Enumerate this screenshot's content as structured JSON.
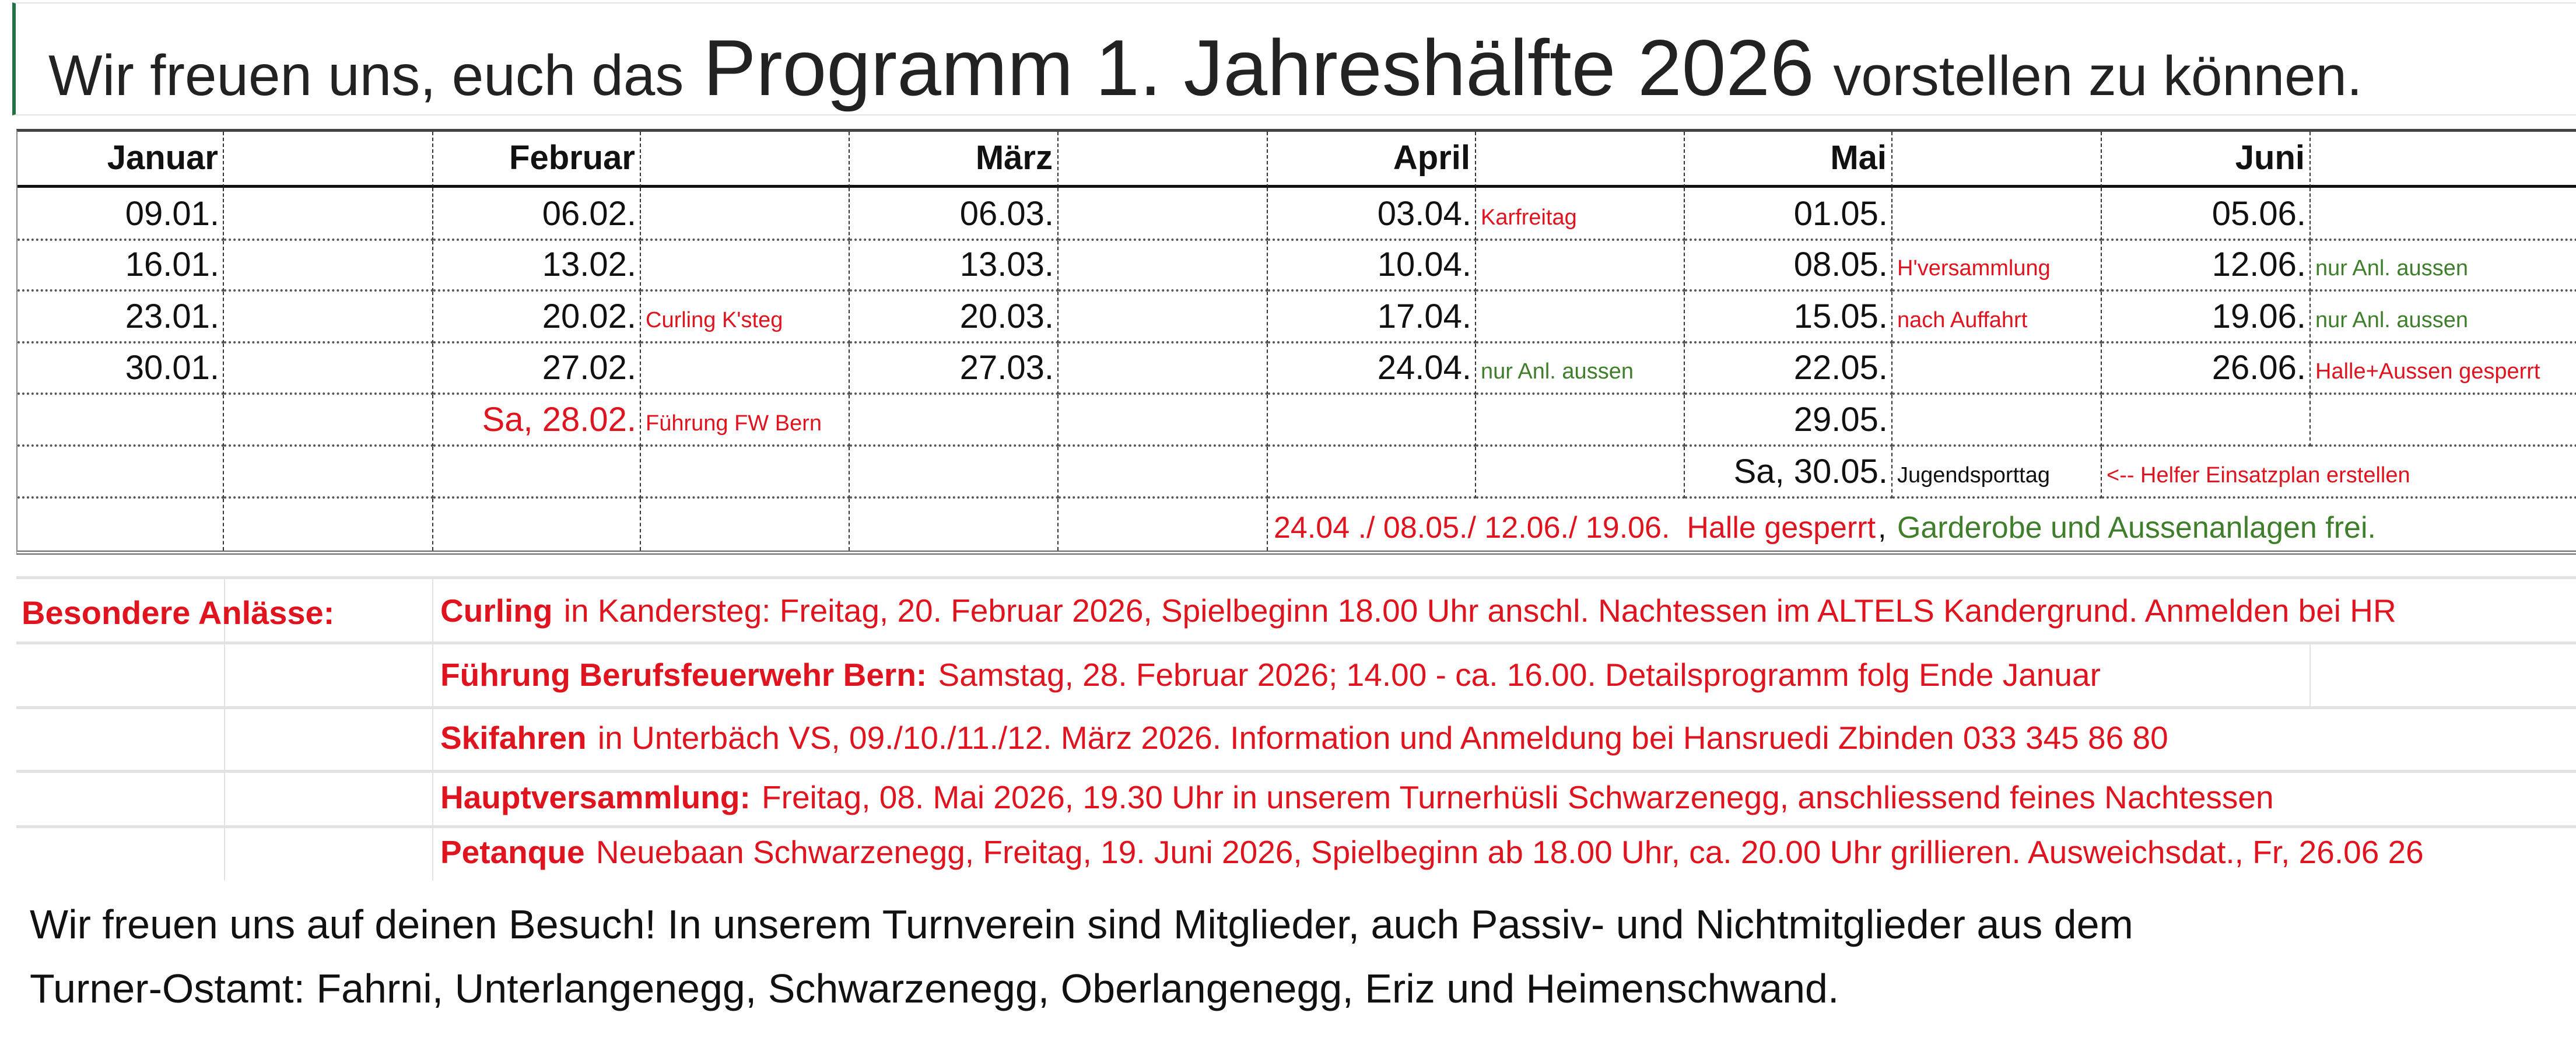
{
  "colors": {
    "red": "#e0141e",
    "green": "#3f7f2c",
    "black": "#111111",
    "accent": "#217346"
  },
  "title": {
    "part1": "Wir freuen uns, euch das ",
    "part2": "Programm 1. Jahreshälfte 2026",
    "part3": " vorstellen zu können."
  },
  "calendar": {
    "months": [
      "Januar",
      "Februar",
      "März",
      "April",
      "Mai",
      "Juni"
    ],
    "rows": [
      [
        {
          "text": "09.01."
        },
        {},
        {
          "text": "06.02."
        },
        {},
        {
          "text": "06.03."
        },
        {},
        {
          "text": "03.04."
        },
        {
          "text": "Karfreitag",
          "color": "red"
        },
        {
          "text": "01.05."
        },
        {},
        {
          "text": "05.06."
        },
        {}
      ],
      [
        {
          "text": "16.01."
        },
        {},
        {
          "text": "13.02."
        },
        {},
        {
          "text": "13.03."
        },
        {},
        {
          "text": "10.04."
        },
        {},
        {
          "text": "08.05."
        },
        {
          "text": "H'versammlung",
          "color": "red"
        },
        {
          "text": "12.06."
        },
        {
          "text": "nur Anl. aussen",
          "color": "green"
        }
      ],
      [
        {
          "text": "23.01."
        },
        {},
        {
          "text": "20.02."
        },
        {
          "text": "Curling K'steg",
          "color": "red"
        },
        {
          "text": "20.03."
        },
        {},
        {
          "text": "17.04."
        },
        {},
        {
          "text": "15.05."
        },
        {
          "text": "nach Auffahrt",
          "color": "red"
        },
        {
          "text": "19.06."
        },
        {
          "text": "nur Anl. aussen",
          "color": "green"
        }
      ],
      [
        {
          "text": "30.01."
        },
        {},
        {
          "text": "27.02."
        },
        {},
        {
          "text": "27.03."
        },
        {},
        {
          "text": "24.04."
        },
        {
          "text": "nur Anl. aussen",
          "color": "green"
        },
        {
          "text": "22.05."
        },
        {},
        {
          "text": "26.06."
        },
        {
          "text": "Halle+Aussen gesperrt",
          "color": "red"
        }
      ],
      [
        {},
        {},
        {
          "text": "Sa, 28.02.",
          "color": "red"
        },
        {
          "text": "Führung FW Bern",
          "color": "red"
        },
        {},
        {},
        {},
        {},
        {
          "text": "29.05."
        },
        {},
        {},
        {}
      ],
      [
        {},
        {},
        {},
        {},
        {},
        {},
        {},
        {},
        {
          "text": "Sa, 30.05."
        },
        {
          "text": "Jugendsporttag"
        },
        {
          "text": "<-- Helfer Einsatzplan erstellen",
          "color": "red"
        },
        {}
      ]
    ],
    "closure_note": {
      "red_part": "24.04 ./ 08.05./ 12.06./ 19.06.  Halle gesperrt",
      "separator": ", ",
      "green_part": "Garderobe und Aussenanlagen frei."
    }
  },
  "special": {
    "label": "Besondere Anlässe:",
    "events": [
      {
        "name": "Curling",
        "details": " in Kandersteg: Freitag, 20. Februar 2026, Spielbeginn 18.00 Uhr anschl. Nachtessen im ALTELS Kandergrund. Anmelden bei HR"
      },
      {
        "name": "Führung Berufsfeuerwehr Bern:",
        "details": " Samstag, 28. Februar 2026; 14.00 - ca. 16.00. Detailsprogramm folg Ende Januar"
      },
      {
        "name": "Skifahren",
        "details": " in Unterbäch VS, 09./10./11./12. März 2026. Information und Anmeldung bei Hansruedi Zbinden 033 345 86 80"
      },
      {
        "name": "Hauptversammlung:",
        "details": " Freitag, 08. Mai 2026, 19.30 Uhr in unserem Turnerhüsli Schwarzenegg, anschliessend feines Nachtessen"
      },
      {
        "name": "Petanque",
        "details": " Neuebaan Schwarzenegg, Freitag, 19. Juni 2026, Spielbeginn ab 18.00 Uhr, ca. 20.00 Uhr grillieren. Ausweichsdat., Fr, 26.06 26"
      }
    ]
  },
  "footer": {
    "line1": "Wir freuen uns auf deinen Besuch! In unserem Turnverein sind Mitglieder, auch Passiv- und Nichtmitglieder aus dem",
    "line2": "Turner-Ostamt: Fahrni, Unterlangenegg, Schwarzenegg, Oberlangenegg, Eriz und Heimenschwand."
  }
}
